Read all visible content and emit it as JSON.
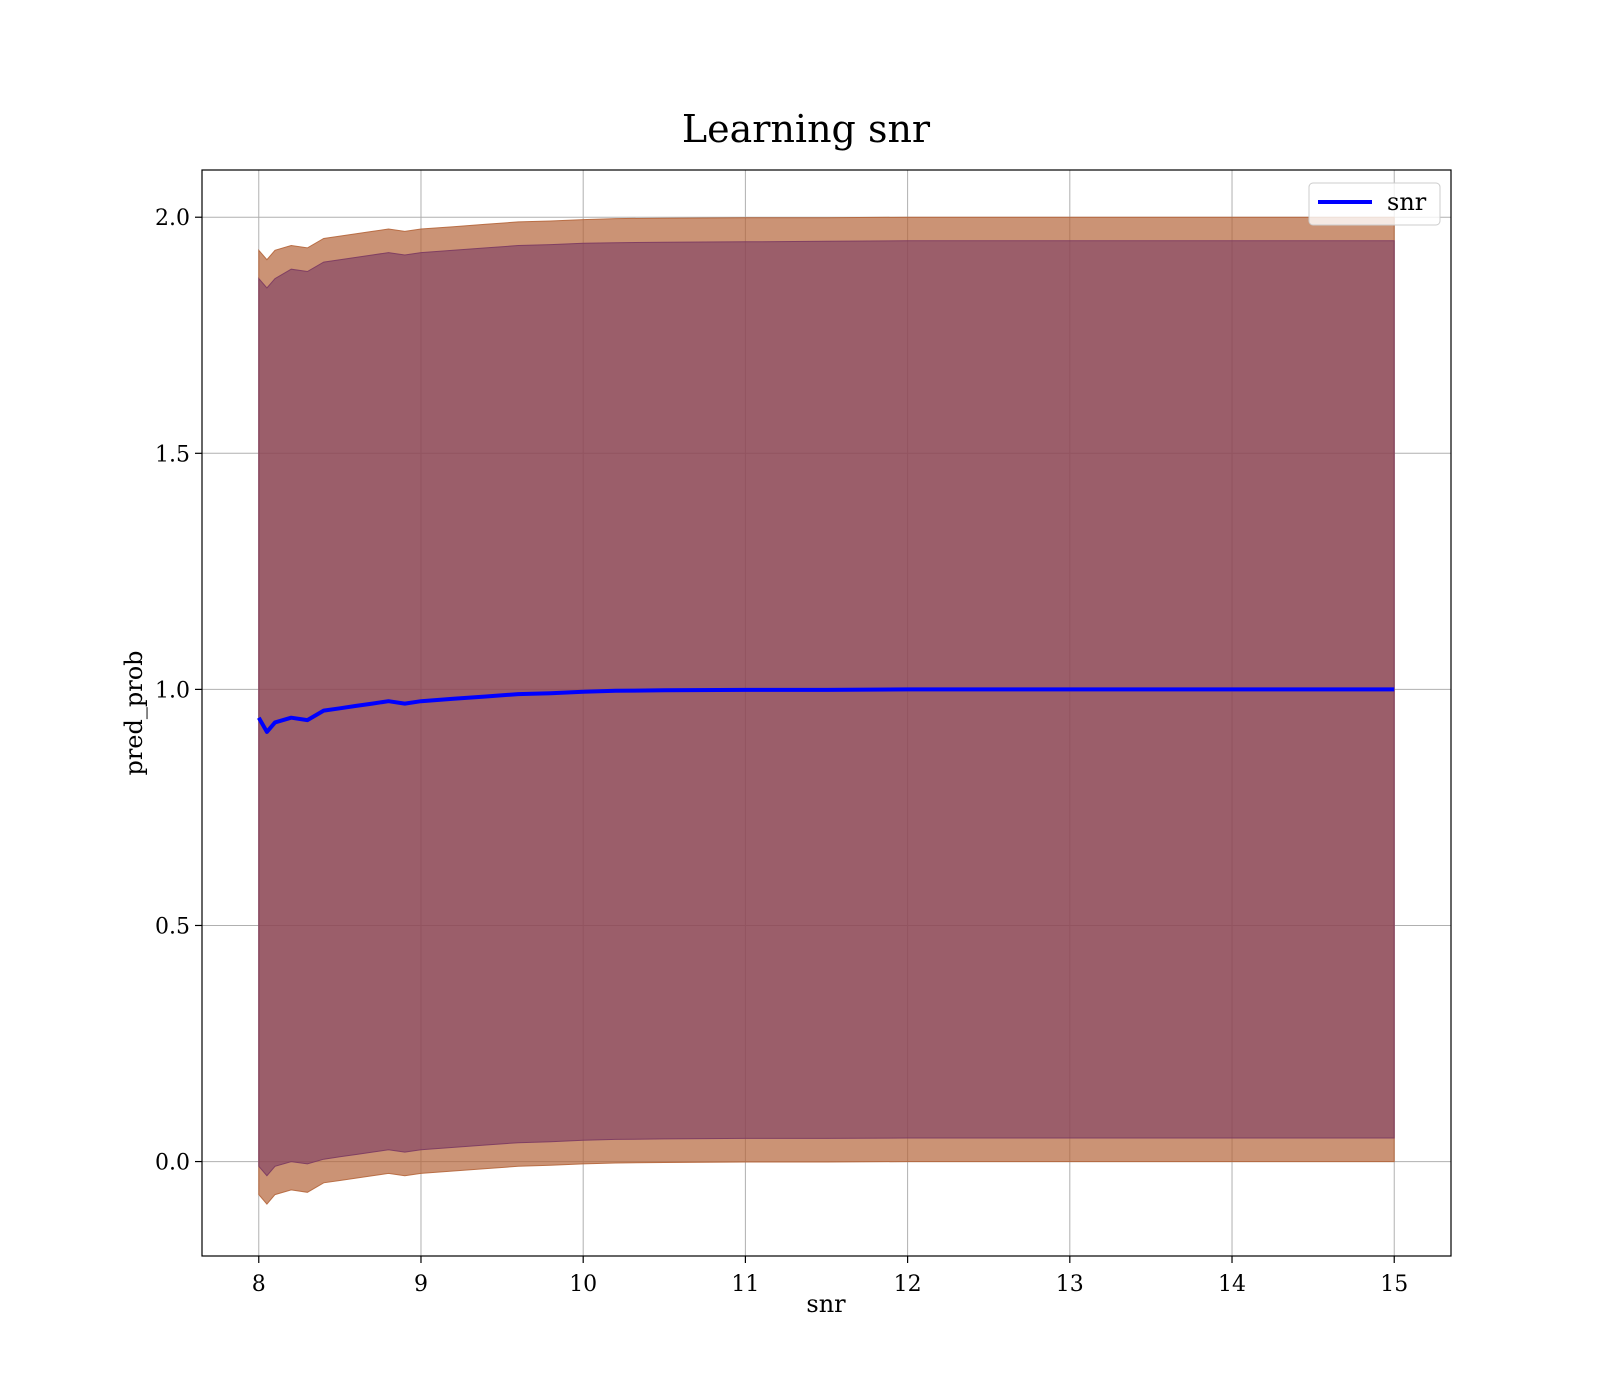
{
  "chart_data": {
    "type": "line",
    "title": "Learning snr",
    "xlabel": "snr",
    "ylabel": "pred_prob",
    "xlim": [
      7.65,
      15.35
    ],
    "ylim": [
      -0.2,
      2.1
    ],
    "xticks": [
      8,
      9,
      10,
      11,
      12,
      13,
      14,
      15
    ],
    "yticks": [
      0.0,
      0.5,
      1.0,
      1.5,
      2.0
    ],
    "ytick_labels": [
      "0.0",
      "0.5",
      "1.0",
      "1.5",
      "2.0"
    ],
    "grid": true,
    "legend": {
      "position": "top-right"
    },
    "series": [
      {
        "name": "snr",
        "color": "#0000ff",
        "x": [
          8.0,
          8.05,
          8.1,
          8.2,
          8.3,
          8.4,
          8.5,
          8.6,
          8.7,
          8.8,
          8.9,
          9.0,
          9.2,
          9.4,
          9.6,
          9.8,
          10.0,
          10.2,
          10.5,
          11.0,
          11.5,
          12.0,
          12.5,
          13.0,
          13.5,
          14.0,
          14.5,
          15.0
        ],
        "values": [
          0.94,
          0.91,
          0.93,
          0.94,
          0.935,
          0.955,
          0.96,
          0.965,
          0.97,
          0.975,
          0.97,
          0.975,
          0.98,
          0.985,
          0.99,
          0.992,
          0.995,
          0.997,
          0.998,
          0.999,
          0.999,
          1.0,
          1.0,
          1.0,
          1.0,
          1.0,
          1.0,
          1.0
        ]
      }
    ],
    "bands": [
      {
        "color": "#b5653a",
        "alpha": 0.7,
        "x": [
          8.0,
          8.05,
          8.1,
          8.2,
          8.3,
          8.4,
          8.5,
          8.6,
          8.7,
          8.8,
          8.9,
          9.0,
          9.2,
          9.4,
          9.6,
          9.8,
          10.0,
          10.2,
          10.5,
          11.0,
          11.5,
          12.0,
          12.5,
          13.0,
          13.5,
          14.0,
          14.5,
          15.0
        ],
        "upper": [
          1.93,
          1.91,
          1.93,
          1.94,
          1.935,
          1.955,
          1.96,
          1.965,
          1.97,
          1.975,
          1.97,
          1.975,
          1.98,
          1.985,
          1.99,
          1.992,
          1.995,
          1.997,
          1.998,
          1.999,
          1.999,
          2.0,
          2.0,
          2.0,
          2.0,
          2.0,
          2.0,
          2.0
        ],
        "lower": [
          -0.07,
          -0.09,
          -0.07,
          -0.06,
          -0.065,
          -0.045,
          -0.04,
          -0.035,
          -0.03,
          -0.025,
          -0.03,
          -0.025,
          -0.02,
          -0.015,
          -0.01,
          -0.008,
          -0.005,
          -0.003,
          -0.002,
          -0.001,
          -0.001,
          0.0,
          0.0,
          0.0,
          0.0,
          0.0,
          0.0,
          0.0
        ]
      },
      {
        "color": "#7b3a62",
        "alpha": 0.6,
        "x": [
          8.0,
          8.05,
          8.1,
          8.2,
          8.3,
          8.4,
          8.5,
          8.6,
          8.7,
          8.8,
          8.9,
          9.0,
          9.2,
          9.4,
          9.6,
          9.8,
          10.0,
          10.2,
          10.5,
          11.0,
          11.5,
          12.0,
          12.5,
          13.0,
          13.5,
          14.0,
          14.5,
          15.0
        ],
        "upper": [
          1.87,
          1.85,
          1.87,
          1.89,
          1.885,
          1.905,
          1.91,
          1.915,
          1.92,
          1.925,
          1.92,
          1.925,
          1.93,
          1.935,
          1.94,
          1.942,
          1.945,
          1.946,
          1.947,
          1.948,
          1.949,
          1.95,
          1.95,
          1.95,
          1.95,
          1.95,
          1.95,
          1.95
        ],
        "lower": [
          -0.01,
          -0.03,
          -0.01,
          0.0,
          -0.005,
          0.005,
          0.01,
          0.015,
          0.02,
          0.025,
          0.02,
          0.025,
          0.03,
          0.035,
          0.04,
          0.042,
          0.045,
          0.047,
          0.048,
          0.049,
          0.049,
          0.05,
          0.05,
          0.05,
          0.05,
          0.05,
          0.05,
          0.05
        ]
      }
    ]
  }
}
